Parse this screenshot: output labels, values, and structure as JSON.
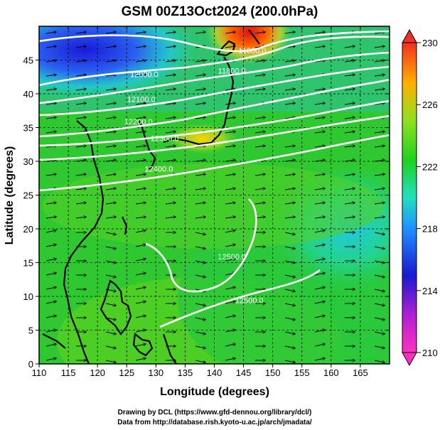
{
  "title": "GSM 00Z13Oct2024 (200.0hPa)",
  "xlabel": "Longitude (degrees)",
  "ylabel": "Latitude  (degrees)",
  "x_ticks": [
    "110",
    "115",
    "120",
    "125",
    "130",
    "135",
    "140",
    "145",
    "150",
    "155",
    "160",
    "165"
  ],
  "y_ticks": [
    "0",
    "5",
    "10",
    "15",
    "20",
    "25",
    "30",
    "35",
    "40",
    "45"
  ],
  "colorbar": {
    "ticks": [
      "210",
      "214",
      "218",
      "222",
      "226",
      "230"
    ],
    "range": [
      210,
      230
    ]
  },
  "contour_labels": [
    {
      "text": "11600.0",
      "lon": 146.5,
      "lat": 46.0
    },
    {
      "text": "11800.0",
      "lon": 143.0,
      "lat": 43.0
    },
    {
      "text": "12000.0",
      "lon": 128.0,
      "lat": 42.5
    },
    {
      "text": "12100.0",
      "lon": 127.5,
      "lat": 38.8
    },
    {
      "text": "12200.0",
      "lon": 127.0,
      "lat": 35.5
    },
    {
      "text": "12300.0",
      "lon": 131.5,
      "lat": 33.0
    },
    {
      "text": "12400.0",
      "lon": 130.5,
      "lat": 28.5
    },
    {
      "text": "12500.0",
      "lon": 146.0,
      "lat": 9.0
    },
    {
      "text": "12500.0",
      "lon": 143.0,
      "lat": 15.5
    }
  ],
  "credits": {
    "line1": "Drawing by DCL (https://www.gfd-dennou.org/library/dcl/)",
    "line2": "Data from http://database.rish.kyoto-u.ac.jp/arch/jmadata/"
  },
  "colors": {
    "field_low": "#1010c0",
    "field_mid": "#20d020",
    "field_high": "#e01010",
    "contour": "#ffffff",
    "coast": "#000000"
  }
}
